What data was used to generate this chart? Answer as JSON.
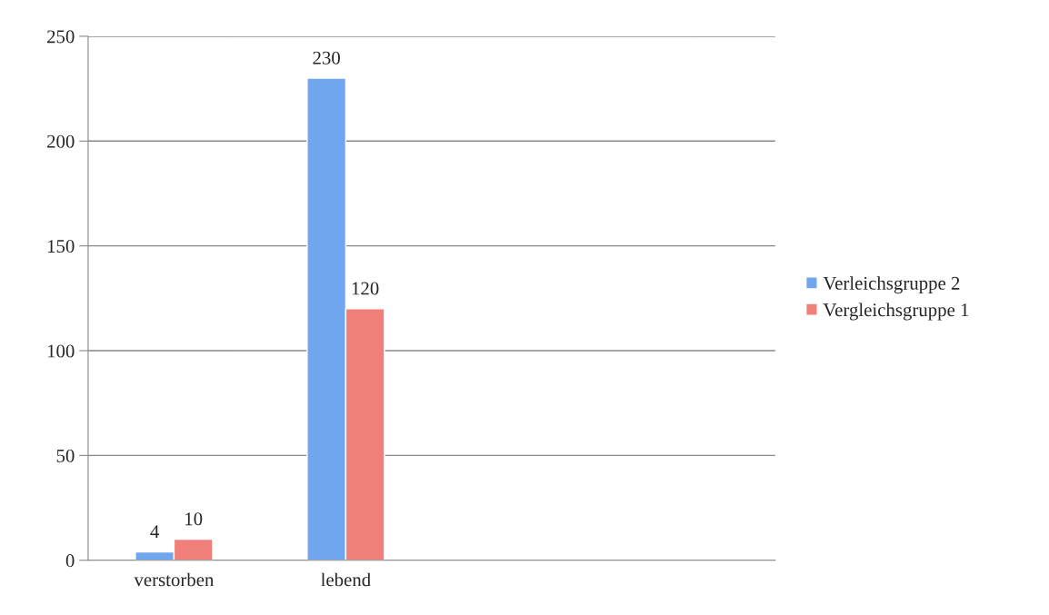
{
  "chart_data": {
    "type": "bar",
    "categories": [
      "verstorben",
      "lebend",
      null,
      null
    ],
    "series": [
      {
        "name": "Verleichsgruppe 2",
        "color": "#6fa6ee",
        "values": [
          4,
          230,
          null,
          null
        ]
      },
      {
        "name": "Vergleichsgruppe 1",
        "color": "#f07f7a",
        "values": [
          10,
          120,
          null,
          null
        ]
      }
    ],
    "ylim": [
      0,
      250
    ],
    "yticks": [
      0,
      50,
      100,
      150,
      200,
      250
    ],
    "grid": "y",
    "legend": "right",
    "data_labels": true
  }
}
